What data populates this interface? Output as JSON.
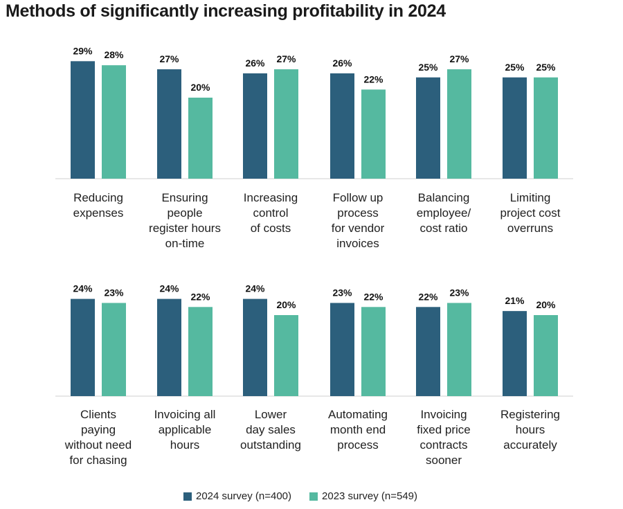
{
  "title": "Methods of significantly increasing profitability in 2024",
  "colors": {
    "series_2024": "#2c5f7c",
    "series_2023": "#55b9a0",
    "axis": "#cfcfcf"
  },
  "chart_data": {
    "type": "bar",
    "title": "Methods of significantly increasing profitability in 2024",
    "ylim": [
      0,
      30
    ],
    "value_suffix": "%",
    "categories": [
      "Reducing\nexpenses",
      "Ensuring\npeople\nregister hours\non-time",
      "Increasing\ncontrol\nof costs",
      "Follow up\nprocess\nfor vendor\ninvoices",
      "Balancing\nemployee/\ncost ratio",
      "Limiting\nproject cost\noverruns",
      "Clients\npaying\nwithout need\nfor chasing",
      "Invoicing all\napplicable\nhours",
      "Lower\nday sales\noutstanding",
      "Automating\nmonth end\nprocess",
      "Invoicing\nfixed price\ncontracts\nsooner",
      "Registering\nhours\naccurately"
    ],
    "series": [
      {
        "name": "2024 survey (n=400)",
        "values": [
          29,
          27,
          26,
          26,
          25,
          25,
          24,
          24,
          24,
          23,
          22,
          21
        ]
      },
      {
        "name": "2023 survey (n=549)",
        "values": [
          28,
          20,
          27,
          22,
          27,
          25,
          23,
          22,
          20,
          22,
          23,
          20
        ]
      }
    ],
    "legend": "bottom-center"
  }
}
